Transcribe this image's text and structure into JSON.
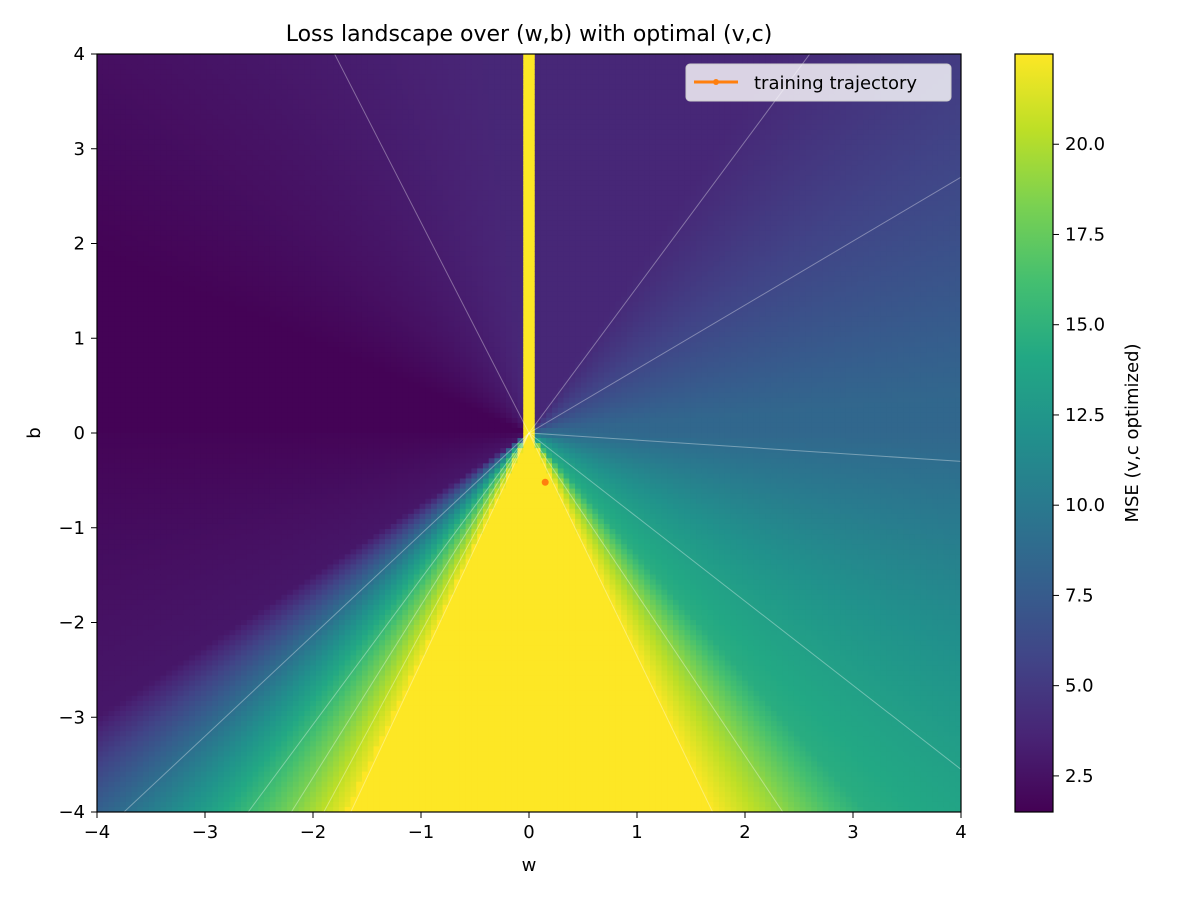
{
  "chart_data": {
    "type": "heatmap",
    "title": "Loss landscape over (w,b) with optimal (v,c)",
    "xlabel": "w",
    "ylabel": "b",
    "xlim": [
      -4,
      4
    ],
    "ylim": [
      -4,
      4
    ],
    "x_ticks": [
      -4,
      -3,
      -2,
      -1,
      0,
      1,
      2,
      3,
      4
    ],
    "y_ticks": [
      -4,
      -3,
      -2,
      -1,
      0,
      1,
      2,
      3,
      4
    ],
    "x_tick_labels": [
      "−4",
      "−3",
      "−2",
      "−1",
      "0",
      "1",
      "2",
      "3",
      "4"
    ],
    "y_tick_labels": [
      "−4",
      "−3",
      "−2",
      "−1",
      "0",
      "1",
      "2",
      "3",
      "4"
    ],
    "colormap": "viridis",
    "colorbar": {
      "label": "MSE (v,c optimized)",
      "range": [
        1.5,
        22.5
      ],
      "ticks": [
        2.5,
        5.0,
        7.5,
        10.0,
        12.5,
        15.0,
        17.5,
        20.0
      ],
      "tick_labels": [
        "2.5",
        "5.0",
        "7.5",
        "10.0",
        "12.5",
        "15.0",
        "17.5",
        "20.0"
      ]
    },
    "contour_lines_through_origin": [
      {
        "endpoint": [
          -1.8,
          4
        ]
      },
      {
        "endpoint": [
          2.6,
          4
        ]
      },
      {
        "endpoint": [
          4,
          2.7
        ]
      },
      {
        "endpoint": [
          4,
          -0.3
        ]
      },
      {
        "endpoint": [
          4,
          -3.55
        ]
      },
      {
        "endpoint": [
          2.35,
          -4
        ]
      },
      {
        "endpoint": [
          1.7,
          -4
        ]
      },
      {
        "endpoint": [
          -1.65,
          -4
        ]
      },
      {
        "endpoint": [
          -1.9,
          -4
        ]
      },
      {
        "endpoint": [
          -2.2,
          -4
        ]
      },
      {
        "endpoint": [
          -2.6,
          -4
        ]
      },
      {
        "endpoint": [
          -3.75,
          -4
        ]
      }
    ],
    "series": [
      {
        "name": "training trajectory",
        "color": "#ff7f0e",
        "points": [
          [
            0.15,
            -0.52
          ]
        ]
      }
    ],
    "legend": {
      "position": "top-right",
      "entries": [
        "training trajectory"
      ]
    },
    "grid": false
  }
}
